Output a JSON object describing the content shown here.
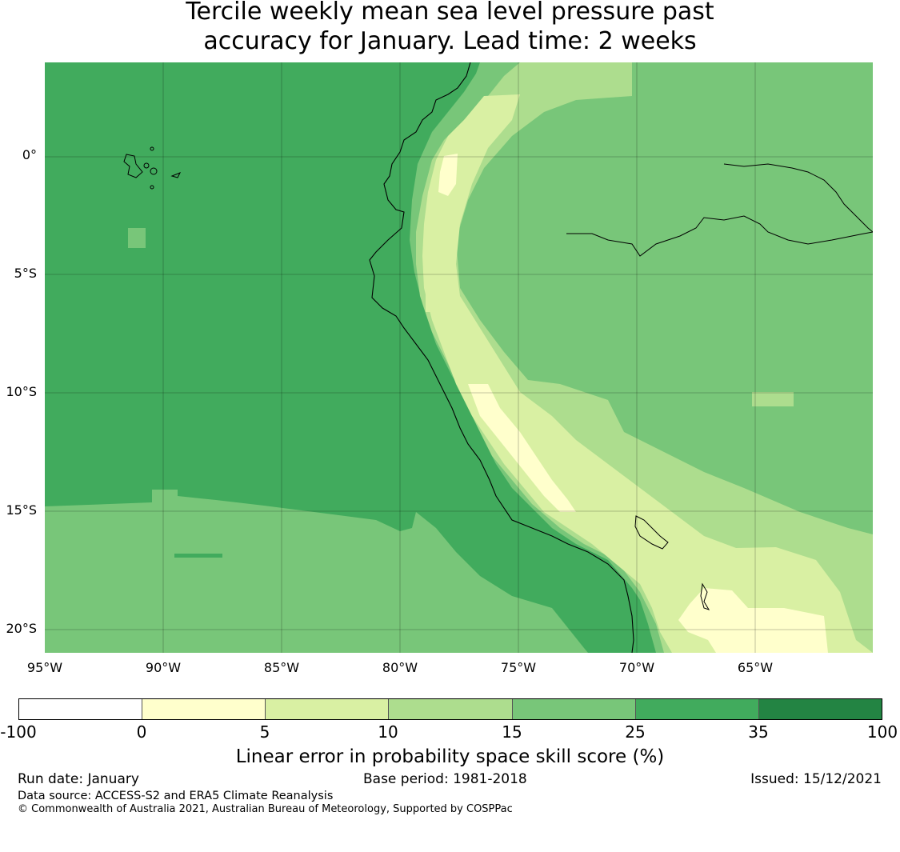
{
  "title": {
    "line1": "Tercile weekly mean sea level pressure past",
    "line2": "accuracy for January. Lead time: 2 weeks"
  },
  "map": {
    "lat_labels": [
      "0°",
      "5°S",
      "10°S",
      "15°S",
      "20°S"
    ],
    "lon_labels": [
      "95°W",
      "90°W",
      "85°W",
      "80°W",
      "75°W",
      "70°W",
      "65°W"
    ],
    "extent": {
      "lon": [
        -95,
        -60
      ],
      "lat": [
        -21,
        4
      ]
    },
    "gridlines": true
  },
  "colorbar": {
    "ticks": [
      "-100",
      "0",
      "5",
      "10",
      "15",
      "25",
      "35",
      "100"
    ],
    "colors": [
      "#ffffff",
      "#ffffcc",
      "#d9f0a3",
      "#addd8e",
      "#78c679",
      "#41ab5d",
      "#238443"
    ],
    "label": "Linear error in probability space skill score (%)"
  },
  "footer": {
    "run_date": "Run date: January",
    "base_period": "Base period: 1981-2018",
    "issued": "Issued: 15/12/2021",
    "data_source": "Data source: ACCESS-S2 and ERA5 Climate Reanalysis",
    "copyright": "© Commonwealth of Australia 2021, Australian Bureau of Meteorology, Supported by COSPPac"
  }
}
